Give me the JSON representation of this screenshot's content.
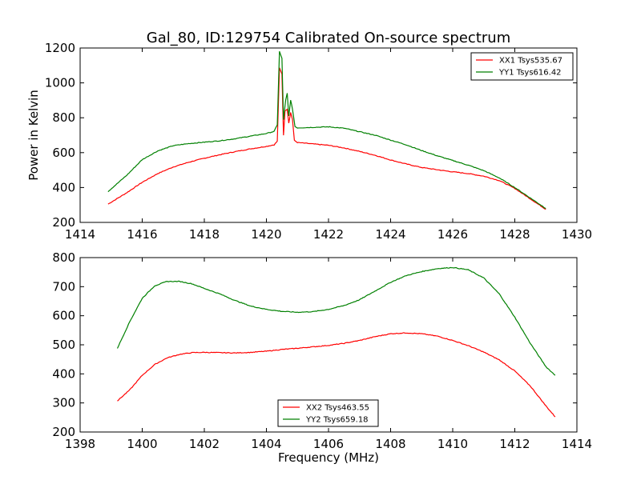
{
  "figure": {
    "title": "Gal_80, ID:129754 Calibrated On-source spectrum",
    "ylabel": "Power in Kelvin",
    "xlabel": "Frequency (MHz)"
  },
  "chart_data": [
    {
      "type": "line",
      "xlim": [
        1414,
        1430
      ],
      "ylim": [
        200,
        1200
      ],
      "xticks": [
        "1414",
        "1416",
        "1418",
        "1420",
        "1422",
        "1424",
        "1426",
        "1428",
        "1430"
      ],
      "yticks": [
        "200",
        "400",
        "600",
        "800",
        "1000",
        "1200"
      ],
      "legend_position": "top-right",
      "series": [
        {
          "name": "XX1 Tsys535.67",
          "color": "#ff0000",
          "points": [
            [
              1414.9,
              305
            ],
            [
              1415.5,
              370
            ],
            [
              1416,
              430
            ],
            [
              1416.5,
              480
            ],
            [
              1417,
              518
            ],
            [
              1417.5,
              545
            ],
            [
              1418,
              568
            ],
            [
              1418.5,
              588
            ],
            [
              1419,
              606
            ],
            [
              1419.5,
              622
            ],
            [
              1420,
              636
            ],
            [
              1420.25,
              645
            ],
            [
              1420.35,
              665
            ],
            [
              1420.42,
              1085
            ],
            [
              1420.5,
              1050
            ],
            [
              1420.55,
              700
            ],
            [
              1420.6,
              840
            ],
            [
              1420.67,
              850
            ],
            [
              1420.72,
              770
            ],
            [
              1420.78,
              830
            ],
            [
              1420.84,
              790
            ],
            [
              1420.9,
              670
            ],
            [
              1421,
              658
            ],
            [
              1421.5,
              650
            ],
            [
              1422,
              642
            ],
            [
              1422.5,
              627
            ],
            [
              1423,
              607
            ],
            [
              1423.5,
              585
            ],
            [
              1424,
              558
            ],
            [
              1424.5,
              535
            ],
            [
              1425,
              515
            ],
            [
              1425.5,
              502
            ],
            [
              1426,
              490
            ],
            [
              1426.5,
              480
            ],
            [
              1427,
              465
            ],
            [
              1427.5,
              440
            ],
            [
              1428,
              395
            ],
            [
              1428.5,
              335
            ],
            [
              1429,
              275
            ]
          ]
        },
        {
          "name": "YY1 Tsys616.42",
          "color": "#008000",
          "points": [
            [
              1414.9,
              377
            ],
            [
              1415.5,
              470
            ],
            [
              1416,
              560
            ],
            [
              1416.5,
              610
            ],
            [
              1417,
              640
            ],
            [
              1417.5,
              652
            ],
            [
              1418,
              660
            ],
            [
              1418.5,
              668
            ],
            [
              1419,
              680
            ],
            [
              1419.5,
              695
            ],
            [
              1420,
              710
            ],
            [
              1420.25,
              722
            ],
            [
              1420.35,
              760
            ],
            [
              1420.42,
              1180
            ],
            [
              1420.5,
              1140
            ],
            [
              1420.55,
              790
            ],
            [
              1420.62,
              900
            ],
            [
              1420.67,
              940
            ],
            [
              1420.72,
              810
            ],
            [
              1420.78,
              900
            ],
            [
              1420.84,
              850
            ],
            [
              1420.92,
              750
            ],
            [
              1421,
              742
            ],
            [
              1421.5,
              745
            ],
            [
              1422,
              748
            ],
            [
              1422.5,
              740
            ],
            [
              1423,
              720
            ],
            [
              1423.5,
              700
            ],
            [
              1424,
              672
            ],
            [
              1424.5,
              645
            ],
            [
              1425,
              612
            ],
            [
              1425.5,
              582
            ],
            [
              1426,
              555
            ],
            [
              1426.5,
              528
            ],
            [
              1427,
              497
            ],
            [
              1427.5,
              455
            ],
            [
              1428,
              400
            ],
            [
              1428.5,
              340
            ],
            [
              1429,
              280
            ]
          ]
        }
      ]
    },
    {
      "type": "line",
      "xlim": [
        1398,
        1414
      ],
      "ylim": [
        200,
        800
      ],
      "xticks": [
        "1398",
        "1400",
        "1402",
        "1404",
        "1406",
        "1408",
        "1410",
        "1412",
        "1414"
      ],
      "yticks": [
        "200",
        "300",
        "400",
        "500",
        "600",
        "700",
        "800"
      ],
      "legend_position": "lower-center",
      "series": [
        {
          "name": "XX2 Tsys463.55",
          "color": "#ff0000",
          "points": [
            [
              1399.2,
              307
            ],
            [
              1399.6,
              345
            ],
            [
              1400,
              395
            ],
            [
              1400.4,
              432
            ],
            [
              1400.8,
              455
            ],
            [
              1401.2,
              467
            ],
            [
              1401.6,
              473
            ],
            [
              1402,
              474
            ],
            [
              1402.5,
              473
            ],
            [
              1403,
              472
            ],
            [
              1403.5,
              474
            ],
            [
              1404,
              478
            ],
            [
              1404.5,
              484
            ],
            [
              1405,
              488
            ],
            [
              1405.5,
              493
            ],
            [
              1406,
              498
            ],
            [
              1406.5,
              505
            ],
            [
              1407,
              515
            ],
            [
              1407.5,
              528
            ],
            [
              1408,
              538
            ],
            [
              1408.5,
              541
            ],
            [
              1409,
              538
            ],
            [
              1409.5,
              530
            ],
            [
              1410,
              515
            ],
            [
              1410.5,
              497
            ],
            [
              1411,
              475
            ],
            [
              1411.5,
              448
            ],
            [
              1412,
              410
            ],
            [
              1412.5,
              358
            ],
            [
              1413,
              290
            ],
            [
              1413.3,
              252
            ]
          ]
        },
        {
          "name": "YY2 Tsys659.18",
          "color": "#008000",
          "points": [
            [
              1399.2,
              488
            ],
            [
              1399.6,
              580
            ],
            [
              1400,
              660
            ],
            [
              1400.4,
              703
            ],
            [
              1400.8,
              718
            ],
            [
              1401.2,
              718
            ],
            [
              1401.6,
              710
            ],
            [
              1402,
              694
            ],
            [
              1402.5,
              675
            ],
            [
              1403,
              652
            ],
            [
              1403.5,
              633
            ],
            [
              1404,
              622
            ],
            [
              1404.5,
              615
            ],
            [
              1405,
              612
            ],
            [
              1405.5,
              614
            ],
            [
              1406,
              622
            ],
            [
              1406.5,
              635
            ],
            [
              1407,
              655
            ],
            [
              1407.5,
              685
            ],
            [
              1408,
              715
            ],
            [
              1408.5,
              738
            ],
            [
              1409,
              752
            ],
            [
              1409.5,
              762
            ],
            [
              1410,
              766
            ],
            [
              1410.5,
              758
            ],
            [
              1411,
              730
            ],
            [
              1411.5,
              675
            ],
            [
              1412,
              595
            ],
            [
              1412.5,
              505
            ],
            [
              1413,
              425
            ],
            [
              1413.3,
              395
            ]
          ]
        }
      ]
    }
  ]
}
